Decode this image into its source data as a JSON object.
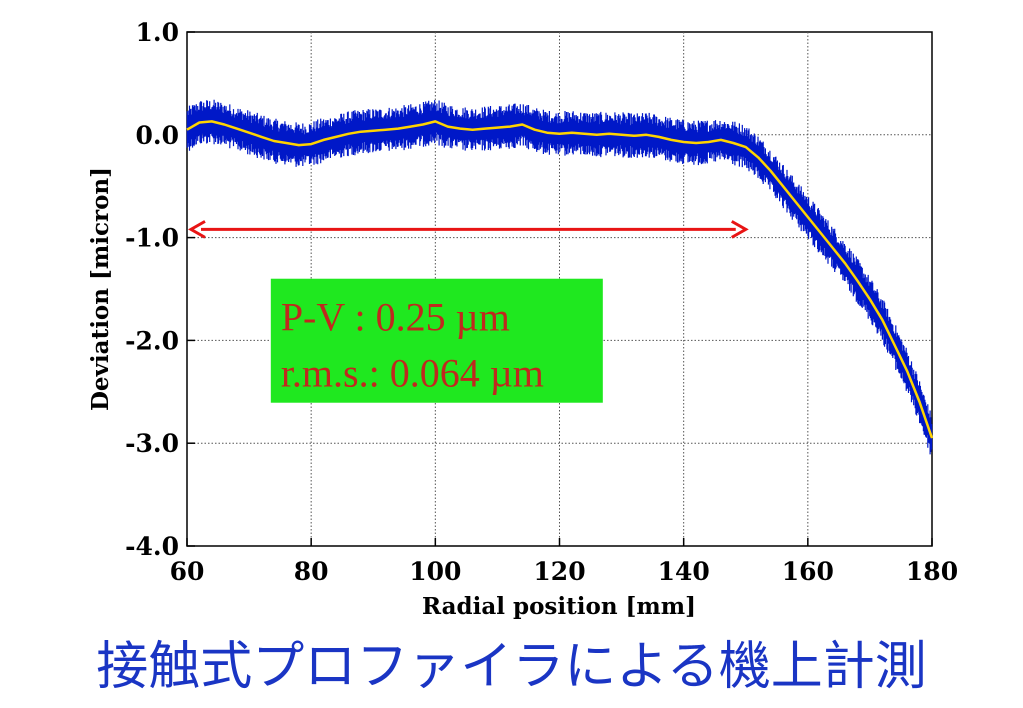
{
  "chart_data": {
    "type": "line",
    "title": "",
    "xlabel": "Radial position [mm]",
    "ylabel": "Deviation [micron]",
    "xlim": [
      60,
      180
    ],
    "ylim": [
      -4.0,
      1.0
    ],
    "x_ticks": [
      "60",
      "80",
      "100",
      "120",
      "140",
      "160",
      "180"
    ],
    "y_ticks": [
      "1.0",
      "0.0",
      "-1.0",
      "-2.0",
      "-3.0",
      "-4.0"
    ],
    "grid": true,
    "series": [
      {
        "color": "#0018c8",
        "style": "noisy-scatter",
        "x": [
          60,
          62,
          64,
          66,
          68,
          70,
          72,
          74,
          76,
          78,
          80,
          82,
          84,
          86,
          88,
          90,
          92,
          94,
          96,
          98,
          100,
          102,
          104,
          106,
          108,
          110,
          112,
          114,
          116,
          118,
          120,
          122,
          124,
          126,
          128,
          130,
          132,
          134,
          136,
          138,
          140,
          142,
          144,
          146,
          148,
          150,
          152,
          154,
          156,
          158,
          160,
          162,
          164,
          166,
          168,
          170,
          172,
          174,
          176,
          178,
          180
        ],
        "y": [
          0.05,
          0.12,
          0.13,
          0.1,
          0.06,
          0.02,
          -0.02,
          -0.06,
          -0.08,
          -0.1,
          -0.09,
          -0.05,
          -0.02,
          0.01,
          0.03,
          0.04,
          0.05,
          0.06,
          0.08,
          0.1,
          0.13,
          0.08,
          0.06,
          0.05,
          0.06,
          0.07,
          0.08,
          0.1,
          0.05,
          0.02,
          0.01,
          0.02,
          0.01,
          0.0,
          0.01,
          0.0,
          -0.01,
          0.0,
          -0.02,
          -0.05,
          -0.07,
          -0.08,
          -0.07,
          -0.05,
          -0.08,
          -0.12,
          -0.22,
          -0.35,
          -0.5,
          -0.65,
          -0.8,
          -0.95,
          -1.1,
          -1.25,
          -1.42,
          -1.6,
          -1.8,
          -2.05,
          -2.3,
          -2.6,
          -2.95
        ]
      },
      {
        "color": "#ffd400",
        "style": "smoothed-line",
        "x": [
          60,
          62,
          64,
          66,
          68,
          70,
          72,
          74,
          76,
          78,
          80,
          82,
          84,
          86,
          88,
          90,
          92,
          94,
          96,
          98,
          100,
          102,
          104,
          106,
          108,
          110,
          112,
          114,
          116,
          118,
          120,
          122,
          124,
          126,
          128,
          130,
          132,
          134,
          136,
          138,
          140,
          142,
          144,
          146,
          148,
          150,
          152,
          154,
          156,
          158,
          160,
          162,
          164,
          166,
          168,
          170,
          172,
          174,
          176,
          178,
          180
        ],
        "y": [
          0.05,
          0.12,
          0.13,
          0.1,
          0.06,
          0.02,
          -0.02,
          -0.06,
          -0.08,
          -0.1,
          -0.09,
          -0.05,
          -0.02,
          0.01,
          0.03,
          0.04,
          0.05,
          0.06,
          0.08,
          0.1,
          0.13,
          0.08,
          0.06,
          0.05,
          0.06,
          0.07,
          0.08,
          0.1,
          0.05,
          0.02,
          0.01,
          0.02,
          0.01,
          0.0,
          0.01,
          0.0,
          -0.01,
          0.0,
          -0.02,
          -0.05,
          -0.07,
          -0.08,
          -0.07,
          -0.05,
          -0.08,
          -0.12,
          -0.22,
          -0.35,
          -0.5,
          -0.65,
          -0.8,
          -0.95,
          -1.1,
          -1.25,
          -1.42,
          -1.6,
          -1.8,
          -2.05,
          -2.3,
          -2.6,
          -2.95
        ]
      }
    ],
    "annotations": {
      "range_arrow": {
        "x_start": 60,
        "x_end": 150,
        "y": -0.92,
        "color": "#e81414"
      },
      "stats_box": {
        "background": "#1fe81f",
        "x": 73.5,
        "y": -1.4,
        "lines": [
          "P-V   : 0.25 µm",
          "r.m.s.: 0.064 µm"
        ]
      }
    }
  },
  "caption": "接触式プロファイラによる機上計測"
}
